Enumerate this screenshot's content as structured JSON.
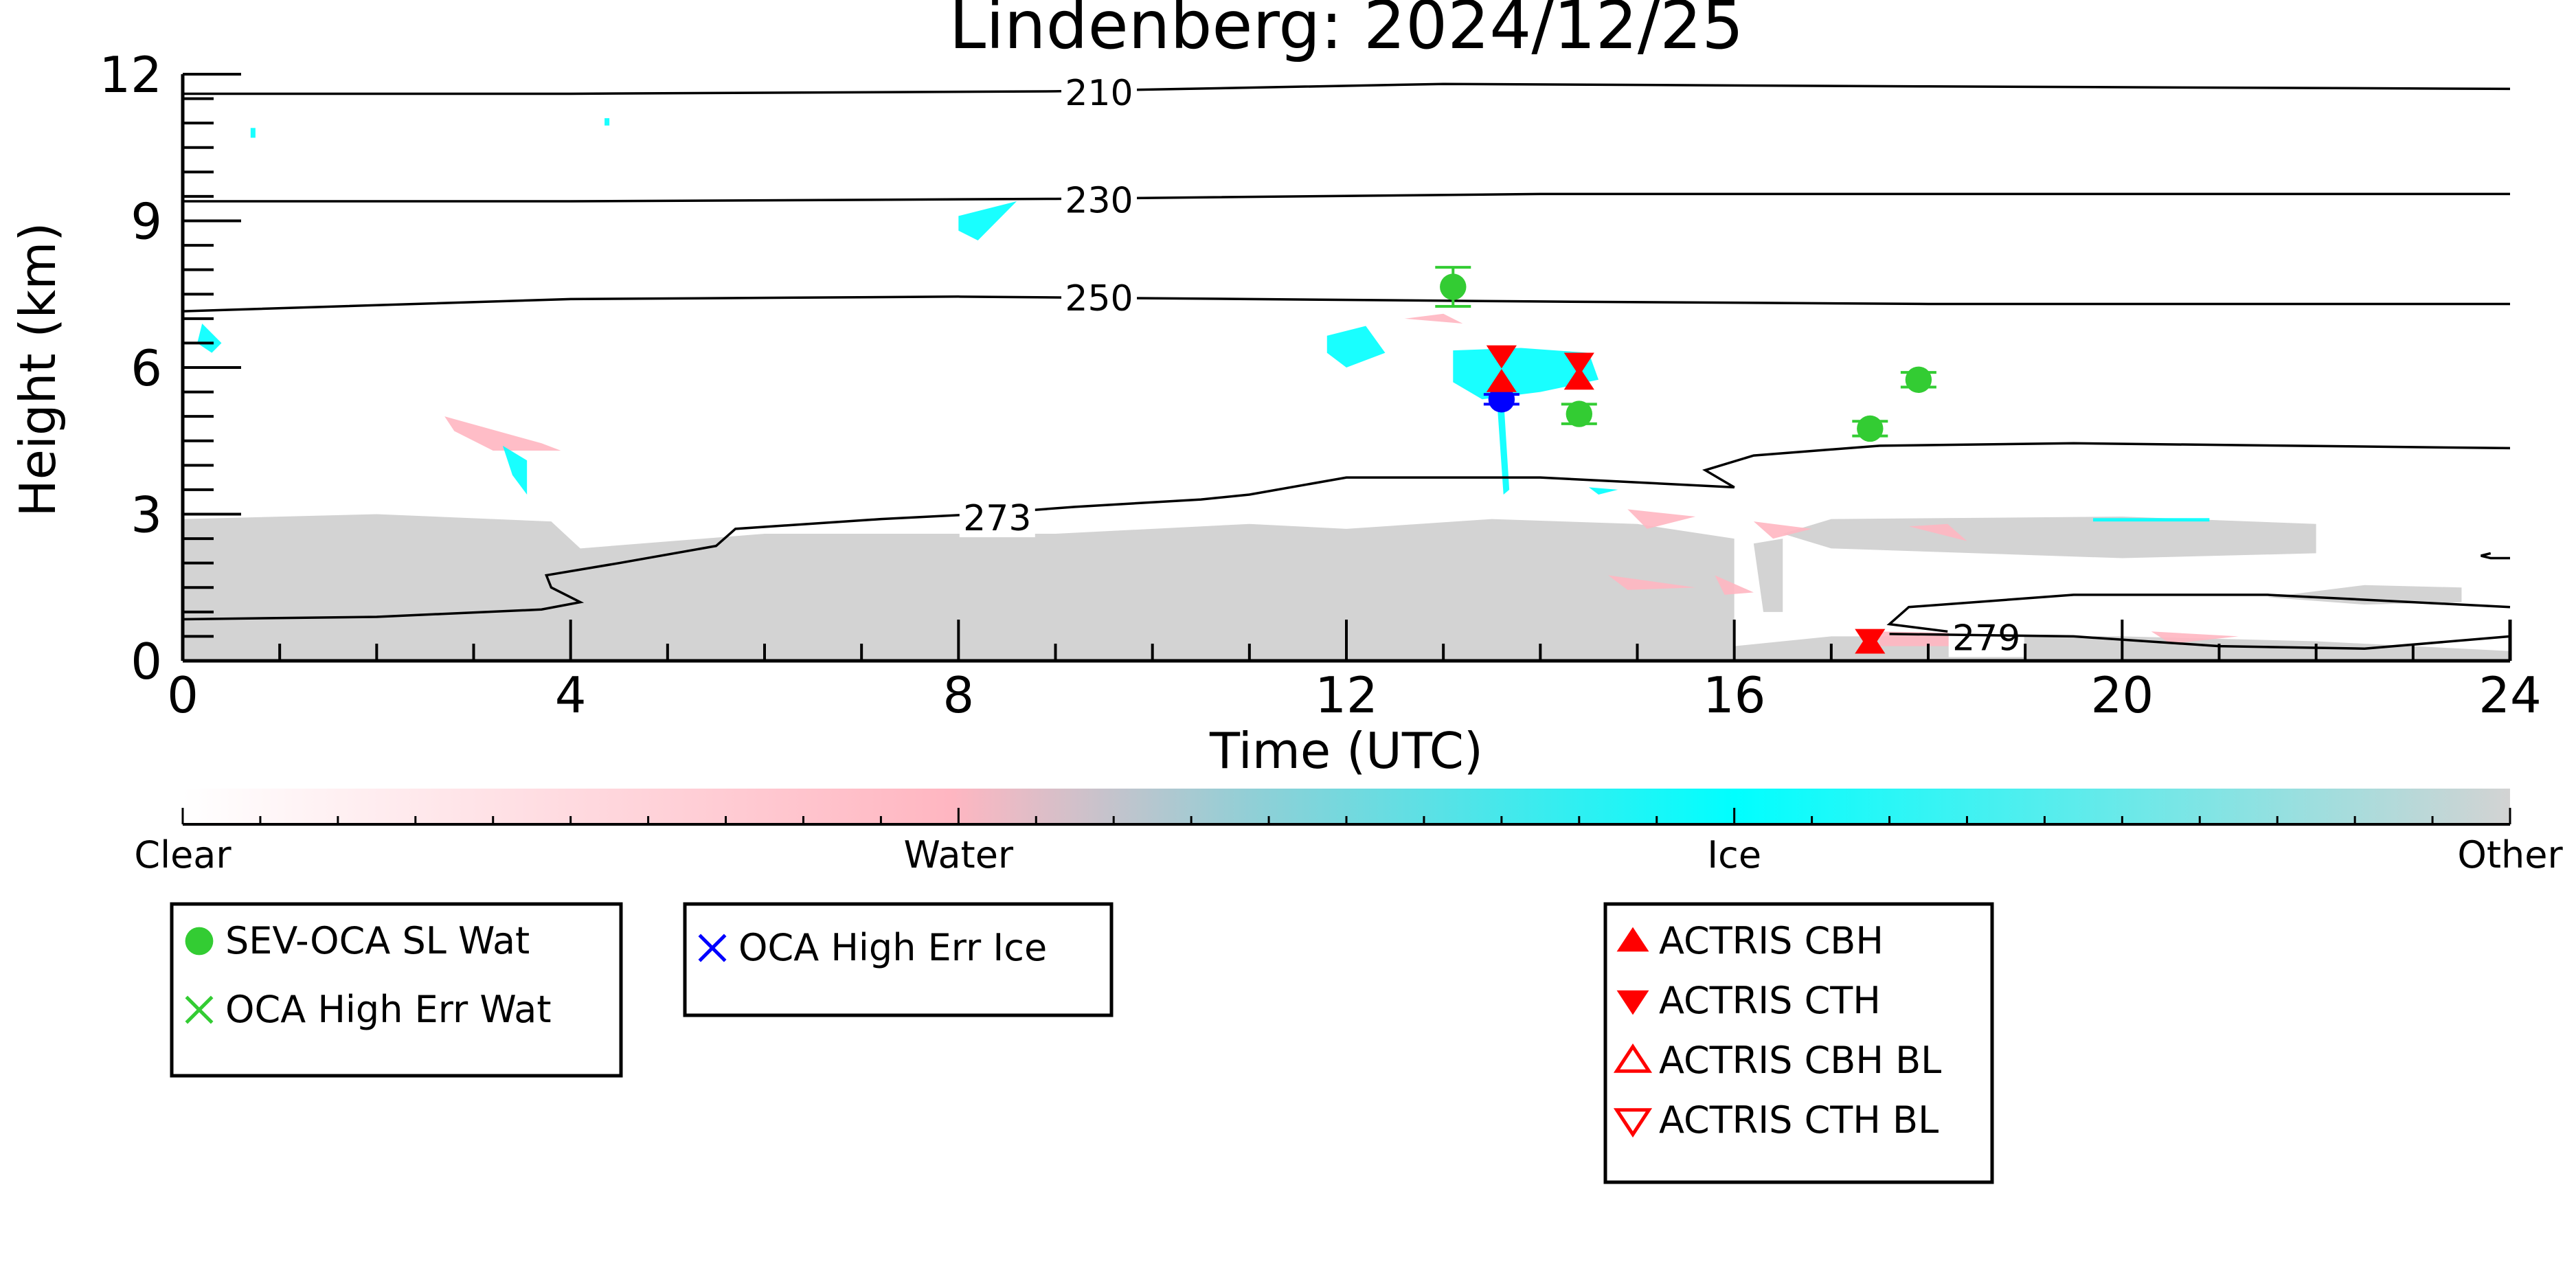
{
  "chart_data": {
    "type": "scatter",
    "title": "Lindenberg: 2024/12/25",
    "xlabel": "Time (UTC)",
    "ylabel": "Height (km)",
    "xlim": [
      0,
      24
    ],
    "ylim": [
      0,
      12
    ],
    "xticks": [
      0,
      4,
      8,
      12,
      16,
      20,
      24
    ],
    "yticks": [
      0,
      3,
      6,
      9,
      12
    ],
    "colorbar": {
      "labels": [
        "Clear",
        "Water",
        "Ice",
        "Other"
      ],
      "colors": [
        "#ffffff",
        "#ffb6c1",
        "#00ffff",
        "#d3d3d3"
      ]
    },
    "temperature_contours": [
      {
        "label": "210",
        "points": [
          [
            0,
            11.6
          ],
          [
            4,
            11.6
          ],
          [
            9,
            11.65
          ],
          [
            13,
            11.8
          ],
          [
            18,
            11.75
          ],
          [
            24,
            11.7
          ]
        ]
      },
      {
        "label": "230",
        "points": [
          [
            0,
            9.4
          ],
          [
            4,
            9.4
          ],
          [
            9,
            9.45
          ],
          [
            14,
            9.55
          ],
          [
            20,
            9.55
          ],
          [
            24,
            9.55
          ]
        ]
      },
      {
        "label": "250",
        "points": [
          [
            0,
            7.15
          ],
          [
            4,
            7.4
          ],
          [
            8,
            7.45
          ],
          [
            11,
            7.4
          ],
          [
            14,
            7.35
          ],
          [
            18,
            7.3
          ],
          [
            24,
            7.3
          ]
        ]
      },
      {
        "label": "273",
        "points": [
          [
            0,
            0.85
          ],
          [
            2,
            0.9
          ],
          [
            3.7,
            1.05
          ],
          [
            4.1,
            1.2
          ],
          [
            3.8,
            1.5
          ],
          [
            3.75,
            1.75
          ],
          [
            4.5,
            2.0
          ],
          [
            5.5,
            2.35
          ],
          [
            5.7,
            2.7
          ],
          [
            7.2,
            2.9
          ],
          [
            8.2,
            3.0
          ],
          [
            9.2,
            3.15
          ],
          [
            10.5,
            3.3
          ],
          [
            11,
            3.4
          ],
          [
            12,
            3.75
          ],
          [
            14,
            3.75
          ],
          [
            16,
            3.55
          ],
          [
            15.7,
            3.9
          ],
          [
            16.2,
            4.2
          ],
          [
            17.5,
            4.4
          ],
          [
            19.5,
            4.45
          ],
          [
            24,
            4.35
          ]
        ]
      },
      {
        "label": "279",
        "points": [
          [
            18.2,
            0.6
          ],
          [
            17.6,
            0.75
          ],
          [
            17.8,
            1.1
          ],
          [
            19.5,
            1.35
          ],
          [
            21.5,
            1.35
          ],
          [
            24,
            1.1
          ]
        ]
      },
      {
        "label": "",
        "points": [
          [
            17.6,
            0.55
          ],
          [
            19.5,
            0.5
          ],
          [
            21,
            0.3
          ],
          [
            22.5,
            0.25
          ],
          [
            24,
            0.5
          ]
        ]
      },
      {
        "label": "",
        "points": [
          [
            23.8,
            2.2
          ],
          [
            23.7,
            2.15
          ],
          [
            23.8,
            2.1
          ],
          [
            24,
            2.1
          ]
        ]
      }
    ],
    "series": [
      {
        "name": "SEV-OCA SL Wat",
        "color": "#33cc33",
        "marker": "filled-circle",
        "x": [
          13.1,
          14.4,
          17.4,
          17.9
        ],
        "y": [
          7.65,
          5.05,
          4.75,
          5.75
        ],
        "err": [
          0.4,
          0.2,
          0.15,
          0.15
        ]
      },
      {
        "name": "OCA High Err Wat",
        "color": "#33cc33",
        "marker": "x",
        "x": [],
        "y": []
      },
      {
        "name": "OCA High Err Ice",
        "color": "#0000ff",
        "marker": "x",
        "x": [
          13.6
        ],
        "y": [
          5.35
        ],
        "err": [
          0.1
        ]
      },
      {
        "name": "ACTRIS CBH",
        "color": "#ff0000",
        "marker": "filled-triangle-up",
        "x": [
          13.6,
          14.4,
          17.4
        ],
        "y": [
          5.7,
          5.75,
          0.35
        ]
      },
      {
        "name": "ACTRIS CTH",
        "color": "#ff0000",
        "marker": "filled-triangle-down",
        "x": [
          13.6,
          14.4,
          17.4
        ],
        "y": [
          6.25,
          6.1,
          0.45
        ]
      },
      {
        "name": "ACTRIS CBH BL",
        "color": "#ff0000",
        "marker": "open-triangle-up",
        "x": [],
        "y": []
      },
      {
        "name": "ACTRIS CTH BL",
        "color": "#ff0000",
        "marker": "open-triangle-down",
        "x": [],
        "y": []
      }
    ],
    "cloud_regions": [
      {
        "class": "Other",
        "color": "#d3d3d3",
        "points": [
          [
            0,
            0
          ],
          [
            0,
            2.9
          ],
          [
            2,
            3.0
          ],
          [
            3.8,
            2.85
          ],
          [
            4.1,
            2.3
          ],
          [
            6,
            2.6
          ],
          [
            9,
            2.6
          ],
          [
            11,
            2.8
          ],
          [
            12,
            2.7
          ],
          [
            13.5,
            2.9
          ],
          [
            15,
            2.8
          ],
          [
            16,
            2.5
          ],
          [
            16,
            0
          ]
        ]
      },
      {
        "class": "Other",
        "color": "#d3d3d3",
        "points": [
          [
            16,
            0.3
          ],
          [
            17,
            0.5
          ],
          [
            20,
            0.5
          ],
          [
            22,
            0.4
          ],
          [
            24,
            0.2
          ],
          [
            24,
            0
          ],
          [
            16,
            0
          ]
        ]
      },
      {
        "class": "Other",
        "color": "#d3d3d3",
        "points": [
          [
            16.5,
            2.6
          ],
          [
            17,
            2.9
          ],
          [
            20,
            2.95
          ],
          [
            22,
            2.8
          ],
          [
            22,
            2.2
          ],
          [
            20,
            2.1
          ],
          [
            17,
            2.3
          ]
        ]
      },
      {
        "class": "Other",
        "color": "#d3d3d3",
        "points": [
          [
            21.5,
            1.3
          ],
          [
            22.5,
            1.55
          ],
          [
            23.5,
            1.5
          ],
          [
            23.5,
            1.2
          ],
          [
            22.5,
            1.15
          ]
        ]
      },
      {
        "class": "Other",
        "color": "#d3d3d3",
        "points": [
          [
            16.2,
            2.4
          ],
          [
            16.5,
            2.5
          ],
          [
            16.5,
            1.0
          ],
          [
            16.3,
            1.0
          ]
        ]
      },
      {
        "class": "Water",
        "color": "#ffb6c1",
        "points": [
          [
            2.7,
            5.0
          ],
          [
            3.7,
            4.45
          ],
          [
            3.9,
            4.3
          ],
          [
            3.2,
            4.3
          ],
          [
            2.8,
            4.7
          ]
        ]
      },
      {
        "class": "Water",
        "color": "#ffb6c1",
        "points": [
          [
            14.9,
            3.1
          ],
          [
            15.6,
            2.95
          ],
          [
            15.1,
            2.7
          ]
        ]
      },
      {
        "class": "Water",
        "color": "#ffb6c1",
        "points": [
          [
            16.2,
            2.85
          ],
          [
            16.8,
            2.7
          ],
          [
            16.4,
            2.5
          ]
        ]
      },
      {
        "class": "Water",
        "color": "#ffb6c1",
        "points": [
          [
            17.8,
            2.75
          ],
          [
            18.4,
            2.45
          ],
          [
            18.2,
            2.8
          ]
        ]
      },
      {
        "class": "Water",
        "color": "#ffb6c1",
        "points": [
          [
            14.7,
            1.75
          ],
          [
            15.6,
            1.5
          ],
          [
            14.9,
            1.45
          ]
        ]
      },
      {
        "class": "Water",
        "color": "#ffb6c1",
        "points": [
          [
            15.8,
            1.75
          ],
          [
            16.2,
            1.4
          ],
          [
            15.9,
            1.35
          ]
        ]
      },
      {
        "class": "Water",
        "color": "#ffb6c1",
        "points": [
          [
            17.5,
            0.6
          ],
          [
            18.8,
            0.55
          ],
          [
            18.5,
            0.3
          ],
          [
            17.5,
            0.3
          ]
        ]
      },
      {
        "class": "Water",
        "color": "#ffb6c1",
        "points": [
          [
            20.3,
            0.6
          ],
          [
            21.2,
            0.5
          ],
          [
            20.5,
            0.35
          ]
        ]
      },
      {
        "class": "Water",
        "color": "#ffb6c1",
        "points": [
          [
            12.6,
            7.0
          ],
          [
            13.0,
            7.1
          ],
          [
            13.2,
            6.9
          ]
        ]
      },
      {
        "class": "Ice",
        "color": "#00ffff",
        "points": [
          [
            0.2,
            6.9
          ],
          [
            0.4,
            6.5
          ],
          [
            0.3,
            6.3
          ],
          [
            0.15,
            6.5
          ]
        ]
      },
      {
        "class": "Ice",
        "color": "#00ffff",
        "points": [
          [
            3.3,
            4.4
          ],
          [
            3.55,
            4.1
          ],
          [
            3.55,
            3.4
          ],
          [
            3.4,
            3.8
          ]
        ]
      },
      {
        "class": "Ice",
        "color": "#00ffff",
        "points": [
          [
            8.0,
            9.1
          ],
          [
            8.6,
            9.4
          ],
          [
            8.2,
            8.6
          ],
          [
            8.0,
            8.8
          ]
        ]
      },
      {
        "class": "Ice",
        "color": "#00ffff",
        "points": [
          [
            11.8,
            6.65
          ],
          [
            12.2,
            6.85
          ],
          [
            12.4,
            6.3
          ],
          [
            12.0,
            6.0
          ],
          [
            11.8,
            6.3
          ]
        ]
      },
      {
        "class": "Ice",
        "color": "#00ffff",
        "points": [
          [
            13.1,
            6.35
          ],
          [
            13.8,
            6.4
          ],
          [
            14.5,
            6.3
          ],
          [
            14.6,
            5.75
          ],
          [
            14.0,
            5.5
          ],
          [
            13.4,
            5.35
          ],
          [
            13.1,
            5.7
          ]
        ]
      },
      {
        "class": "Ice",
        "color": "#00ffff",
        "points": [
          [
            13.55,
            5.4
          ],
          [
            13.62,
            5.4
          ],
          [
            13.68,
            3.5
          ],
          [
            13.62,
            3.4
          ]
        ]
      },
      {
        "class": "Ice",
        "color": "#00ffff",
        "points": [
          [
            0.7,
            10.9
          ],
          [
            0.75,
            10.9
          ],
          [
            0.75,
            10.7
          ],
          [
            0.7,
            10.7
          ]
        ]
      },
      {
        "class": "Ice",
        "color": "#00ffff",
        "points": [
          [
            4.35,
            11.1
          ],
          [
            4.4,
            11.1
          ],
          [
            4.4,
            10.95
          ],
          [
            4.35,
            10.95
          ]
        ]
      },
      {
        "class": "Ice",
        "color": "#00ffff",
        "points": [
          [
            19.7,
            2.92
          ],
          [
            20.9,
            2.92
          ],
          [
            20.9,
            2.85
          ],
          [
            19.7,
            2.85
          ]
        ]
      },
      {
        "class": "Ice",
        "color": "#00ffff",
        "points": [
          [
            14.5,
            3.55
          ],
          [
            14.8,
            3.5
          ],
          [
            14.6,
            3.4
          ]
        ]
      }
    ]
  },
  "legends": [
    {
      "name": "legend-oca-water",
      "items": [
        {
          "label": "SEV-OCA SL Wat",
          "marker": "filled-circle",
          "color": "#33cc33"
        },
        {
          "label": "OCA High Err Wat",
          "marker": "x",
          "color": "#33cc33"
        }
      ]
    },
    {
      "name": "legend-oca-ice",
      "items": [
        {
          "label": "OCA High Err Ice",
          "marker": "x",
          "color": "#0000ff"
        }
      ]
    },
    {
      "name": "legend-actris",
      "items": [
        {
          "label": "ACTRIS CBH",
          "marker": "filled-triangle-up",
          "color": "#ff0000"
        },
        {
          "label": "ACTRIS CTH",
          "marker": "filled-triangle-down",
          "color": "#ff0000"
        },
        {
          "label": "ACTRIS CBH BL",
          "marker": "open-triangle-up",
          "color": "#ff0000"
        },
        {
          "label": "ACTRIS CTH BL",
          "marker": "open-triangle-down",
          "color": "#ff0000"
        }
      ]
    }
  ]
}
